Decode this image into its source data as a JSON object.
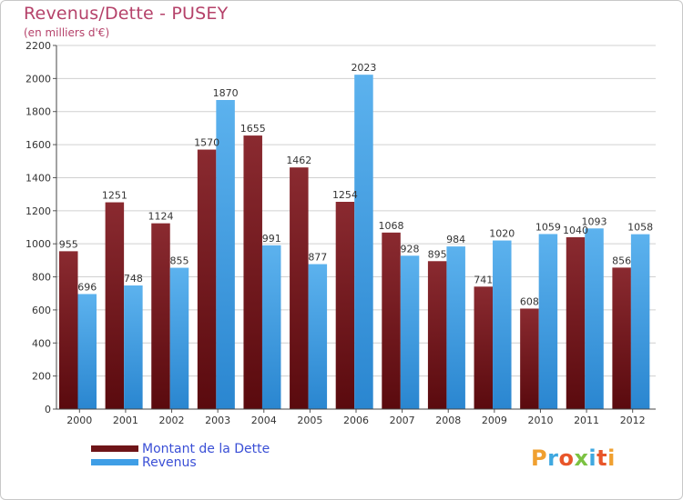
{
  "chart_data": {
    "type": "bar",
    "title": "Revenus/Dette - PUSEY",
    "subtitle": "(en milliers d'€)",
    "xlabel": "",
    "ylabel": "",
    "ylim": [
      0,
      2200
    ],
    "yticks": [
      0,
      200,
      400,
      600,
      800,
      1000,
      1200,
      1400,
      1600,
      1800,
      2000,
      2200
    ],
    "grid": true,
    "categories": [
      "2000",
      "2001",
      "2002",
      "2003",
      "2004",
      "2005",
      "2006",
      "2007",
      "2008",
      "2009",
      "2010",
      "2011",
      "2012"
    ],
    "series": [
      {
        "name": "Montant de la Dette",
        "color": "#7d1a1f",
        "values": [
          955,
          1251,
          1124,
          1570,
          1655,
          1462,
          1254,
          1068,
          895,
          741,
          608,
          1040,
          856
        ]
      },
      {
        "name": "Revenus",
        "color": "#3f9ee6",
        "values": [
          696,
          748,
          855,
          1870,
          991,
          877,
          2023,
          928,
          984,
          1020,
          1059,
          1093,
          1058
        ]
      }
    ],
    "legend_position": "bottom-left"
  },
  "legend": {
    "debt_label": "Montant de la Dette",
    "revenue_label": "Revenus",
    "debt_color": "#6e1418",
    "revenue_color": "#3f9ee6"
  },
  "logo": {
    "text": "Proxiti",
    "colors": [
      "#f0a030",
      "#3fa8e0",
      "#e8562a",
      "#7cc242",
      "#3fa8e0",
      "#e8562a",
      "#f0a030"
    ]
  }
}
